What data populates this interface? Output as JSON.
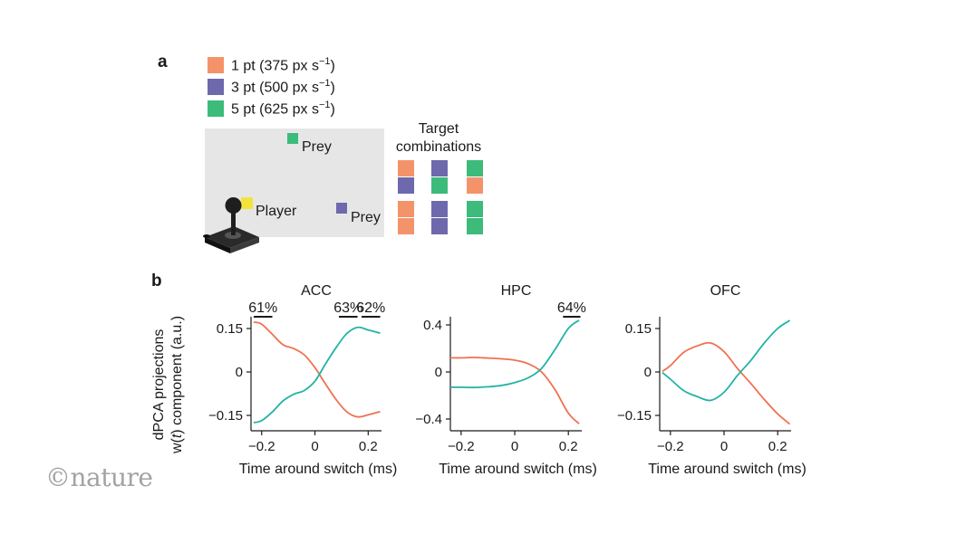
{
  "panel_a": {
    "label": "a",
    "legend": [
      {
        "text": "1 pt (375 px s",
        "sup": "−1",
        "close": ")",
        "color": "#f4936a"
      },
      {
        "text": "3 pt (500 px s",
        "sup": "−1",
        "close": ")",
        "color": "#6e68ad"
      },
      {
        "text": "5 pt (625 px s",
        "sup": "−1",
        "close": ")",
        "color": "#3cbb7b"
      }
    ],
    "arena": {
      "prey_top_label": "Prey",
      "prey_bottom_label": "Prey",
      "player_label": "Player",
      "player_color": "#f3e43c",
      "joystick_icon": "joystick-icon"
    },
    "target_combinations": {
      "title_line1": "Target",
      "title_line2": "combinations",
      "pairs": [
        [
          "#f4936a",
          "#6e68ad"
        ],
        [
          "#6e68ad",
          "#3cbb7b"
        ],
        [
          "#3cbb7b",
          "#f4936a"
        ],
        [
          "#f4936a",
          "#f4936a"
        ],
        [
          "#6e68ad",
          "#6e68ad"
        ],
        [
          "#3cbb7b",
          "#3cbb7b"
        ]
      ]
    }
  },
  "panel_b": {
    "label": "b",
    "ylabel_line1": "dPCA projections",
    "ylabel_line2_pre": "w(",
    "ylabel_line2_italic": "t",
    "ylabel_line2_post": ") component (a.u.)"
  },
  "chart_data": [
    {
      "type": "line",
      "title": "ACC",
      "xlabel": "Time around switch (ms)",
      "ylabel": "dPCA projections w(t) component (a.u.)",
      "xlim": [
        -0.24,
        0.25
      ],
      "ylim": [
        -0.2,
        0.2
      ],
      "xticks": [
        -0.2,
        0,
        0.2
      ],
      "xticklabels": [
        "−0.2",
        "0",
        "0.2"
      ],
      "yticks": [
        0.15,
        0,
        -0.15
      ],
      "yticklabels": [
        "0.15",
        "0",
        "−0.15"
      ],
      "series": [
        {
          "color": "#ef7152",
          "x": [
            -0.23,
            -0.2,
            -0.16,
            -0.12,
            -0.08,
            -0.04,
            0,
            0.04,
            0.08,
            0.12,
            0.16,
            0.2,
            0.245
          ],
          "y": [
            0.172,
            0.165,
            0.13,
            0.094,
            0.081,
            0.059,
            0.015,
            -0.042,
            -0.096,
            -0.138,
            -0.155,
            -0.148,
            -0.137
          ]
        },
        {
          "color": "#22b3a6",
          "x": [
            -0.23,
            -0.2,
            -0.16,
            -0.12,
            -0.08,
            -0.04,
            0,
            0.04,
            0.08,
            0.12,
            0.16,
            0.2,
            0.245
          ],
          "y": [
            -0.175,
            -0.168,
            -0.138,
            -0.1,
            -0.077,
            -0.064,
            -0.032,
            0.028,
            0.085,
            0.133,
            0.154,
            0.145,
            0.134
          ]
        }
      ],
      "annotations": [
        {
          "text": "61%",
          "x_from": -0.23,
          "x_to": -0.16
        },
        {
          "text": "63%",
          "x_from": 0.09,
          "x_to": 0.16
        },
        {
          "text": "62%",
          "x_from": 0.175,
          "x_to": 0.245
        }
      ]
    },
    {
      "type": "line",
      "title": "HPC",
      "xlabel": "Time around switch (ms)",
      "xlim": [
        -0.24,
        0.25
      ],
      "ylim": [
        -0.5,
        0.5
      ],
      "xticks": [
        -0.2,
        0,
        0.2
      ],
      "xticklabels": [
        "−0.2",
        "0",
        "0.2"
      ],
      "yticks": [
        0.4,
        0,
        -0.4
      ],
      "yticklabels": [
        "0.4",
        "0",
        "−0.4"
      ],
      "series": [
        {
          "color": "#ef7152",
          "x": [
            -0.24,
            -0.2,
            -0.15,
            -0.1,
            -0.05,
            0,
            0.05,
            0.1,
            0.15,
            0.2,
            0.24
          ],
          "y": [
            0.12,
            0.12,
            0.123,
            0.118,
            0.112,
            0.1,
            0.07,
            0.0,
            -0.15,
            -0.35,
            -0.44
          ]
        },
        {
          "color": "#22b3a6",
          "x": [
            -0.24,
            -0.2,
            -0.15,
            -0.1,
            -0.05,
            0,
            0.05,
            0.1,
            0.15,
            0.2,
            0.24
          ],
          "y": [
            -0.13,
            -0.13,
            -0.132,
            -0.126,
            -0.115,
            -0.09,
            -0.05,
            0.03,
            0.19,
            0.37,
            0.44
          ]
        }
      ],
      "annotations": [
        {
          "text": "64%",
          "x_from": 0.18,
          "x_to": 0.245
        }
      ]
    },
    {
      "type": "line",
      "title": "OFC",
      "xlabel": "Time around switch (ms)",
      "xlim": [
        -0.24,
        0.25
      ],
      "ylim": [
        -0.2,
        0.2
      ],
      "xticks": [
        -0.2,
        0,
        0.2
      ],
      "xticklabels": [
        "−0.2",
        "0",
        "0.2"
      ],
      "yticks": [
        0.15,
        0,
        -0.15
      ],
      "yticklabels": [
        "0.15",
        "0",
        "−0.15"
      ],
      "series": [
        {
          "color": "#ef7152",
          "x": [
            -0.23,
            -0.2,
            -0.15,
            -0.1,
            -0.05,
            0,
            0.05,
            0.1,
            0.15,
            0.2,
            0.245
          ],
          "y": [
            0.002,
            0.022,
            0.068,
            0.09,
            0.1,
            0.07,
            0.012,
            -0.04,
            -0.095,
            -0.145,
            -0.18
          ]
        },
        {
          "color": "#22b3a6",
          "x": [
            -0.23,
            -0.2,
            -0.15,
            -0.1,
            -0.05,
            0,
            0.05,
            0.1,
            0.15,
            0.2,
            0.245
          ],
          "y": [
            -0.002,
            -0.025,
            -0.065,
            -0.085,
            -0.098,
            -0.07,
            -0.012,
            0.04,
            0.1,
            0.15,
            0.178
          ]
        }
      ],
      "annotations": []
    }
  ],
  "watermark": {
    "symbol": "©",
    "text": "nature"
  }
}
